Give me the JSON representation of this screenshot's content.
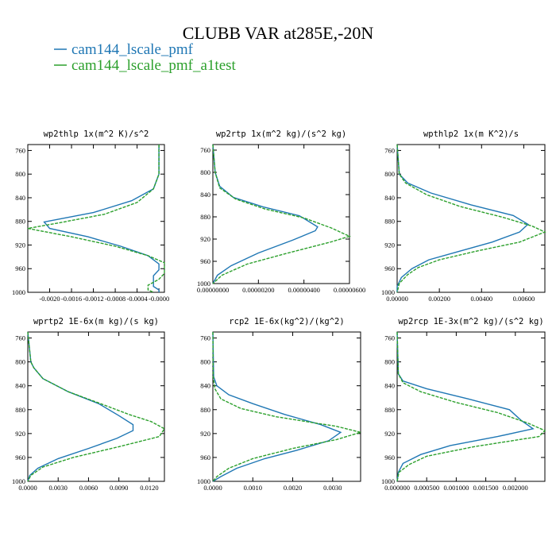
{
  "figure_title": "CLUBB VAR at285E,-20N",
  "legend": [
    {
      "label": "cam144_lscale_pmf",
      "color": "#1f77b4"
    },
    {
      "label": "cam144_lscale_pmf_a1test",
      "color": "#2ca02c"
    }
  ],
  "chart_data": [
    {
      "type": "line",
      "title": "wp2thlp  1x(m^2 K)/s^2",
      "xlim": [
        -0.0024,
        0.0001
      ],
      "ylim": [
        1000,
        750
      ],
      "xticks": [
        -0.002,
        -0.0016,
        -0.0012,
        -0.0008,
        -0.0004,
        0.0
      ],
      "xtick_labels": [
        "-0.0020",
        "-0.0016",
        "-0.0012",
        "-0.0008",
        "-0.0004",
        "-0.0000"
      ],
      "yticks": [
        760,
        800,
        840,
        880,
        920,
        960,
        1000
      ],
      "ytick_labels": [
        "760",
        "800",
        "840",
        "880",
        "920",
        "960",
        "1000"
      ],
      "series": [
        {
          "name": "cam144_lscale_pmf",
          "y": [
            750,
            800,
            825,
            845,
            865,
            881,
            892,
            906,
            922,
            938,
            952,
            962,
            972,
            980,
            990,
            996,
            1000
          ],
          "x": [
            0.0,
            0.0,
            -0.0001,
            -0.0005,
            -0.0012,
            -0.0021,
            -0.002,
            -0.0013,
            -0.0007,
            -0.0002,
            0.0,
            0.0,
            -0.0001,
            -0.0001,
            -0.0001,
            0.0,
            0.0
          ]
        },
        {
          "name": "cam144_lscale_pmf_a1test",
          "y": [
            750,
            800,
            825,
            848,
            868,
            882,
            892,
            906,
            922,
            938,
            950,
            960,
            968,
            978,
            988,
            996,
            1000
          ],
          "x": [
            0.0,
            0.0,
            -0.0001,
            -0.0004,
            -0.001,
            -0.0018,
            -0.0024,
            -0.0016,
            -0.0008,
            -0.0002,
            0.0001,
            0.0001,
            0.0001,
            0.0,
            -0.0002,
            -0.0002,
            -0.0001
          ]
        }
      ]
    },
    {
      "type": "line",
      "title": "wp2rtp  1x(m^2 kg)/(s^2 kg)",
      "xlim": [
        0.0,
        6e-06
      ],
      "ylim": [
        1000,
        750
      ],
      "xticks": [
        0.0,
        2e-06,
        4e-06,
        6e-06
      ],
      "xtick_labels": [
        "0.00000000",
        "0.00000200",
        "0.00000400",
        "0.00000600"
      ],
      "yticks": [
        760,
        800,
        840,
        880,
        920,
        960,
        1000
      ],
      "ytick_labels": [
        "760",
        "800",
        "840",
        "880",
        "920",
        "960",
        "1000"
      ],
      "series": [
        {
          "name": "cam144_lscale_pmf",
          "y": [
            750,
            800,
            825,
            845,
            862,
            878,
            898,
            905,
            922,
            945,
            968,
            985,
            1000
          ],
          "x": [
            0.0,
            1e-07,
            3e-07,
            9e-07,
            2.2e-06,
            3.8e-06,
            4.6e-06,
            4.5e-06,
            3.5e-06,
            2e-06,
            8e-07,
            2e-07,
            0.0
          ],
          "dashed": false
        },
        {
          "name": "cam144_lscale_pmf_a1test",
          "y": [
            750,
            800,
            828,
            848,
            866,
            882,
            900,
            915,
            925,
            945,
            965,
            985,
            1000
          ],
          "x": [
            0.0,
            1e-07,
            3e-07,
            1e-06,
            2.3e-06,
            4e-06,
            5.2e-06,
            6e-06,
            5.2e-06,
            3.3e-06,
            1.5e-06,
            4e-07,
            0.0
          ],
          "dashed": true
        }
      ]
    },
    {
      "type": "line",
      "title": "wpthlp2  1x(m K^2)/s",
      "xlim": [
        0.0,
        0.007
      ],
      "ylim": [
        1000,
        750
      ],
      "xticks": [
        0.0,
        0.002,
        0.004,
        0.006
      ],
      "xtick_labels": [
        "0.00000",
        "0.00200",
        "0.00400",
        "0.00600"
      ],
      "yticks": [
        760,
        800,
        840,
        880,
        920,
        960,
        1000
      ],
      "ytick_labels": [
        "760",
        "800",
        "840",
        "880",
        "920",
        "960",
        "1000"
      ],
      "series": [
        {
          "name": "cam144_lscale_pmf",
          "y": [
            750,
            800,
            815,
            832,
            852,
            870,
            885,
            898,
            915,
            932,
            945,
            960,
            975,
            990,
            1000
          ],
          "x": [
            0.0,
            0.0001,
            0.0005,
            0.0016,
            0.0035,
            0.0055,
            0.0062,
            0.0058,
            0.0045,
            0.0028,
            0.0015,
            0.0007,
            0.0002,
            0.0,
            0.0
          ],
          "dashed": false
        },
        {
          "name": "cam144_lscale_pmf_a1test",
          "y": [
            750,
            800,
            815,
            835,
            855,
            873,
            888,
            898,
            915,
            930,
            945,
            958,
            970,
            985,
            1000
          ],
          "x": [
            0.0,
            0.0001,
            0.0004,
            0.0014,
            0.003,
            0.005,
            0.0064,
            0.007,
            0.0058,
            0.0038,
            0.002,
            0.001,
            0.0005,
            0.0001,
            0.0
          ],
          "dashed": true
        }
      ]
    },
    {
      "type": "line",
      "title": "wprtp2  1E-6x(m kg)/(s kg)",
      "xlim": [
        0.0,
        0.0135
      ],
      "ylim": [
        1000,
        750
      ],
      "xticks": [
        0.0,
        0.003,
        0.006,
        0.009,
        0.012
      ],
      "xtick_labels": [
        "0.0000",
        "0.0030",
        "0.0060",
        "0.0090",
        "0.0120"
      ],
      "yticks": [
        760,
        800,
        840,
        880,
        920,
        960,
        1000
      ],
      "ytick_labels": [
        "760",
        "800",
        "840",
        "880",
        "920",
        "960",
        "1000"
      ],
      "series": [
        {
          "name": "cam144_lscale_pmf",
          "y": [
            750,
            800,
            810,
            828,
            850,
            870,
            890,
            905,
            915,
            928,
            945,
            962,
            978,
            990,
            1000
          ],
          "x": [
            0.0,
            0.0003,
            0.0006,
            0.0015,
            0.004,
            0.007,
            0.009,
            0.0104,
            0.0104,
            0.0088,
            0.006,
            0.003,
            0.001,
            0.0002,
            0.0
          ],
          "dashed": false
        },
        {
          "name": "cam144_lscale_pmf_a1test",
          "y": [
            750,
            800,
            810,
            828,
            850,
            870,
            888,
            900,
            912,
            925,
            942,
            960,
            976,
            990,
            1000
          ],
          "x": [
            0.0,
            0.0003,
            0.0006,
            0.0015,
            0.004,
            0.0072,
            0.01,
            0.0122,
            0.0135,
            0.013,
            0.009,
            0.0045,
            0.0015,
            0.0003,
            0.0
          ],
          "dashed": true
        }
      ]
    },
    {
      "type": "line",
      "title": "rcp2  1E-6x(kg^2)/(kg^2)",
      "xlim": [
        0.0,
        0.0037
      ],
      "ylim": [
        1000,
        750
      ],
      "xticks": [
        0.0,
        0.001,
        0.002,
        0.003
      ],
      "xtick_labels": [
        "0.0000",
        "0.0010",
        "0.0020",
        "0.0030"
      ],
      "yticks": [
        760,
        800,
        840,
        880,
        920,
        960,
        1000
      ],
      "ytick_labels": [
        "760",
        "800",
        "840",
        "880",
        "920",
        "960",
        "1000"
      ],
      "series": [
        {
          "name": "cam144_lscale_pmf",
          "y": [
            750,
            825,
            840,
            855,
            870,
            888,
            905,
            918,
            932,
            948,
            962,
            978,
            992,
            1000
          ],
          "x": [
            0.0,
            2e-05,
            0.0001,
            0.0004,
            0.001,
            0.0018,
            0.0027,
            0.0032,
            0.0029,
            0.0021,
            0.0013,
            0.0006,
            0.0002,
            0.0
          ],
          "dashed": false
        },
        {
          "name": "cam144_lscale_pmf_a1test",
          "y": [
            750,
            825,
            845,
            862,
            878,
            892,
            908,
            918,
            930,
            945,
            962,
            978,
            992,
            1000
          ],
          "x": [
            0.0,
            1e-05,
            5e-05,
            0.0002,
            0.0007,
            0.0016,
            0.0031,
            0.0037,
            0.0031,
            0.002,
            0.001,
            0.0004,
            0.0001,
            0.0
          ],
          "dashed": true
        }
      ]
    },
    {
      "type": "line",
      "title": "wp2rcp  1E-3x(m^2 kg)/(s^2 kg)",
      "xlim": [
        0.0,
        0.0025
      ],
      "ylim": [
        1000,
        750
      ],
      "xticks": [
        0.0,
        0.0005,
        0.001,
        0.0015,
        0.002
      ],
      "xtick_labels": [
        "0.000000",
        "0.000500",
        "0.001000",
        "0.001500",
        "0.002000"
      ],
      "yticks": [
        760,
        800,
        840,
        880,
        920,
        960,
        1000
      ],
      "ytick_labels": [
        "760",
        "800",
        "840",
        "880",
        "920",
        "960",
        "1000"
      ],
      "series": [
        {
          "name": "cam144_lscale_pmf",
          "y": [
            750,
            820,
            832,
            845,
            862,
            880,
            898,
            912,
            925,
            940,
            955,
            970,
            985,
            1000
          ],
          "x": [
            0.0,
            2e-05,
            0.0001,
            0.0005,
            0.0012,
            0.0019,
            0.0021,
            0.0023,
            0.0017,
            0.0009,
            0.0004,
            0.0001,
            2e-05,
            0.0
          ],
          "dashed": false
        },
        {
          "name": "cam144_lscale_pmf_a1test",
          "y": [
            750,
            820,
            835,
            850,
            868,
            885,
            902,
            915,
            925,
            942,
            958,
            972,
            985,
            1000
          ],
          "x": [
            0.0,
            2e-05,
            0.0001,
            0.0004,
            0.001,
            0.0017,
            0.0022,
            0.0025,
            0.0024,
            0.0013,
            0.0005,
            0.0002,
            3e-05,
            0.0
          ],
          "dashed": true
        }
      ]
    }
  ]
}
